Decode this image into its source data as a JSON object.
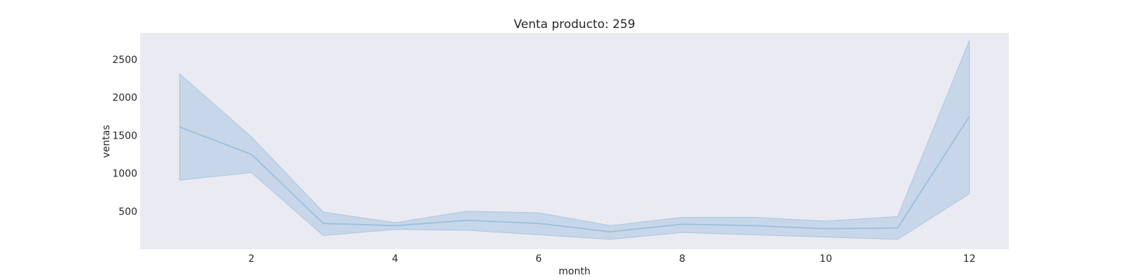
{
  "chart_data": {
    "type": "line",
    "title": "Venta producto: 259",
    "xlabel": "month",
    "ylabel": "ventas",
    "xlim": [
      0.45,
      12.55
    ],
    "ylim": [
      0,
      2850
    ],
    "x_ticks": [
      2,
      4,
      6,
      8,
      10,
      12
    ],
    "y_ticks": [
      500,
      1000,
      1500,
      2000,
      2500
    ],
    "grid": false,
    "series": [
      {
        "x": [
          1,
          2,
          3,
          4,
          5,
          6,
          7,
          8,
          9,
          10,
          11,
          12
        ],
        "values": [
          1610,
          1250,
          340,
          310,
          380,
          340,
          230,
          330,
          310,
          270,
          280,
          1750
        ],
        "ci_lower": [
          910,
          1010,
          180,
          260,
          250,
          190,
          130,
          220,
          190,
          160,
          130,
          730
        ],
        "ci_upper": [
          2310,
          1480,
          490,
          350,
          500,
          480,
          310,
          420,
          420,
          370,
          430,
          2750
        ]
      }
    ],
    "colors": {
      "line": "#9ec1dd",
      "band": "#a9c6e1",
      "plot_background": "#eaeaf2"
    }
  }
}
